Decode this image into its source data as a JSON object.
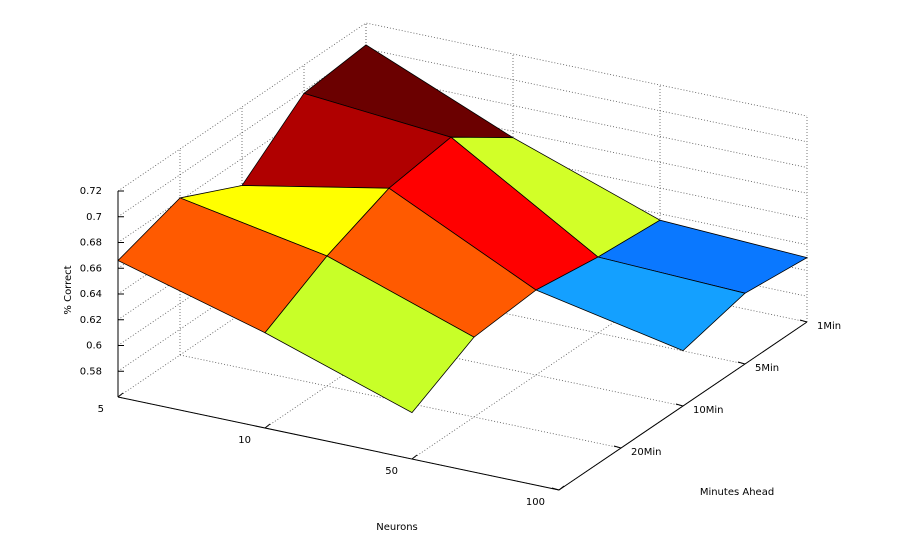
{
  "chart_data": {
    "type": "surface",
    "xlabel": "Neurons",
    "ylabel": "Minutes Ahead",
    "zlabel": "% Correct",
    "x_categories": [
      "5",
      "10",
      "50",
      "100"
    ],
    "y_categories": [
      null,
      "20Min",
      "10Min",
      "5Min",
      "1Min"
    ],
    "z": [
      [
        0.666,
        0.634,
        0.596,
        null
      ],
      [
        0.682,
        0.661,
        0.622,
        null
      ],
      [
        0.659,
        0.681,
        0.626,
        0.603
      ],
      [
        0.698,
        0.688,
        0.619,
        0.615
      ],
      [
        0.703,
        0.655,
        0.615,
        0.61
      ]
    ],
    "face_colors": [
      [
        "#ff5a00",
        "#c8ff28",
        null
      ],
      [
        "#ffff00",
        "#ff5a00",
        null
      ],
      [
        "#b00000",
        "#ff0000",
        "#14a0ff"
      ],
      [
        "#6b0000",
        "#d2ff28",
        "#0a78ff"
      ]
    ],
    "zlim": [
      0.56,
      0.72
    ],
    "zticks": [
      0.58,
      0.6,
      0.62,
      0.64,
      0.66,
      0.68,
      0.7,
      0.72
    ],
    "grid": true
  }
}
